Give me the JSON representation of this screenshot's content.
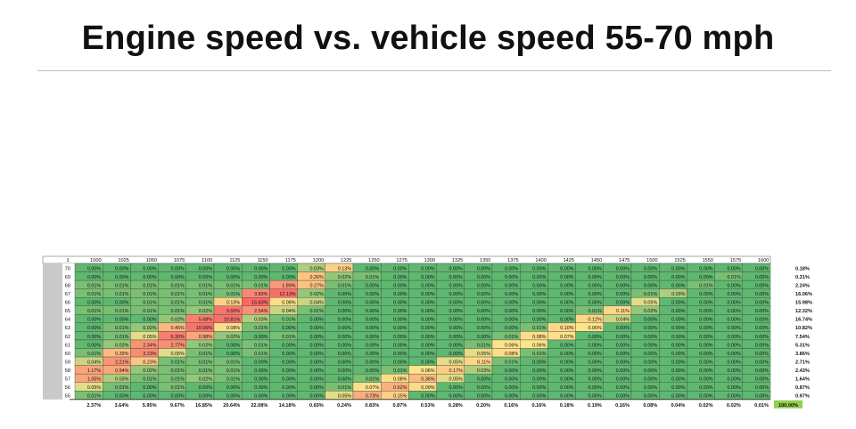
{
  "title": "Engine speed vs. vehicle speed 55-70 mph",
  "chart_data": {
    "type": "heatmap",
    "corner_label": "1",
    "rpm": [
      "1000",
      "1025",
      "1050",
      "1075",
      "1100",
      "1125",
      "1150",
      "1175",
      "1200",
      "1225",
      "1250",
      "1275",
      "1300",
      "1325",
      "1350",
      "1375",
      "1400",
      "1425",
      "1450",
      "1475",
      "1500",
      "1525",
      "1550",
      "1575",
      "1600"
    ],
    "mph": [
      "70",
      "69",
      "68",
      "67",
      "66",
      "65",
      "64",
      "63",
      "62",
      "61",
      "60",
      "59",
      "58",
      "57",
      "56",
      "55"
    ],
    "cells": [
      [
        "0.00%",
        "0.00%",
        "0.00%",
        "0.00%",
        "0.00%",
        "0.00%",
        "0.00%",
        "0.00%",
        "0.03%",
        "0.13%",
        "0.00%",
        "0.00%",
        "0.00%",
        "0.00%",
        "0.00%",
        "0.00%",
        "0.00%",
        "0.00%",
        "0.00%",
        "0.00%",
        "0.00%",
        "0.00%",
        "0.00%",
        "0.00%",
        "0.00%"
      ],
      [
        "0.00%",
        "0.00%",
        "0.00%",
        "0.00%",
        "0.00%",
        "0.00%",
        "0.00%",
        "0.00%",
        "0.26%",
        "0.02%",
        "0.01%",
        "0.00%",
        "0.00%",
        "0.00%",
        "0.00%",
        "0.00%",
        "0.00%",
        "0.00%",
        "0.00%",
        "0.00%",
        "0.00%",
        "0.00%",
        "0.00%",
        "0.01%",
        "0.00%"
      ],
      [
        "0.01%",
        "0.01%",
        "0.01%",
        "0.01%",
        "0.01%",
        "0.01%",
        "0.01%",
        "1.89%",
        "0.27%",
        "0.01%",
        "0.00%",
        "0.00%",
        "0.00%",
        "0.00%",
        "0.00%",
        "0.00%",
        "0.00%",
        "0.00%",
        "0.00%",
        "0.00%",
        "0.00%",
        "0.00%",
        "0.01%",
        "0.00%",
        "0.00%"
      ],
      [
        "0.01%",
        "0.01%",
        "0.01%",
        "0.01%",
        "0.01%",
        "0.01%",
        "3.83%",
        "12.13%",
        "0.02%",
        "0.00%",
        "0.00%",
        "0.00%",
        "0.00%",
        "0.00%",
        "0.00%",
        "0.00%",
        "0.00%",
        "0.00%",
        "0.00%",
        "0.00%",
        "0.01%",
        "0.03%",
        "0.00%",
        "0.00%",
        "0.00%"
      ],
      [
        "0.00%",
        "0.00%",
        "0.01%",
        "0.01%",
        "0.01%",
        "0.13%",
        "15.63%",
        "0.08%",
        "0.04%",
        "0.00%",
        "0.00%",
        "0.00%",
        "0.00%",
        "0.00%",
        "0.00%",
        "0.00%",
        "0.00%",
        "0.00%",
        "0.00%",
        "0.00%",
        "0.05%",
        "0.00%",
        "0.00%",
        "0.00%",
        "0.00%"
      ],
      [
        "0.01%",
        "0.01%",
        "0.01%",
        "0.01%",
        "0.02%",
        "9.55%",
        "2.54%",
        "0.04%",
        "0.01%",
        "0.00%",
        "0.00%",
        "0.00%",
        "0.00%",
        "0.00%",
        "0.00%",
        "0.00%",
        "0.00%",
        "0.00%",
        "0.01%",
        "0.11%",
        "0.02%",
        "0.00%",
        "0.00%",
        "0.00%",
        "0.00%"
      ],
      [
        "0.00%",
        "0.00%",
        "0.00%",
        "0.02%",
        "5.68%",
        "10.81%",
        "0.03%",
        "0.01%",
        "0.00%",
        "0.00%",
        "0.00%",
        "0.00%",
        "0.00%",
        "0.00%",
        "0.00%",
        "0.00%",
        "0.00%",
        "0.00%",
        "0.12%",
        "0.04%",
        "0.00%",
        "0.00%",
        "0.00%",
        "0.00%",
        "0.00%"
      ],
      [
        "0.00%",
        "0.01%",
        "0.02%",
        "0.45%",
        "10.06%",
        "0.08%",
        "0.01%",
        "0.00%",
        "0.00%",
        "0.00%",
        "0.00%",
        "0.00%",
        "0.00%",
        "0.00%",
        "0.00%",
        "0.00%",
        "0.01%",
        "0.10%",
        "0.06%",
        "0.00%",
        "0.00%",
        "0.00%",
        "0.00%",
        "0.00%",
        "0.00%"
      ],
      [
        "0.00%",
        "0.01%",
        "0.05%",
        "6.30%",
        "0.98%",
        "0.02%",
        "0.00%",
        "0.01%",
        "0.00%",
        "0.00%",
        "0.00%",
        "0.00%",
        "0.00%",
        "0.00%",
        "0.00%",
        "0.01%",
        "0.08%",
        "0.07%",
        "0.00%",
        "0.00%",
        "0.00%",
        "0.00%",
        "0.00%",
        "0.00%",
        "0.00%"
      ],
      [
        "0.00%",
        "0.02%",
        "2.34%",
        "2.77%",
        "0.02%",
        "0.00%",
        "0.01%",
        "0.00%",
        "0.00%",
        "0.00%",
        "0.00%",
        "0.00%",
        "0.00%",
        "0.00%",
        "0.01%",
        "0.06%",
        "0.06%",
        "0.00%",
        "0.00%",
        "0.00%",
        "0.00%",
        "0.00%",
        "0.00%",
        "0.00%",
        "0.00%"
      ],
      [
        "0.01%",
        "0.39%",
        "3.23%",
        "0.05%",
        "0.01%",
        "0.00%",
        "0.01%",
        "0.00%",
        "0.00%",
        "0.00%",
        "0.00%",
        "0.00%",
        "0.00%",
        "0.00%",
        "0.05%",
        "0.08%",
        "0.01%",
        "0.00%",
        "0.00%",
        "0.00%",
        "0.00%",
        "0.00%",
        "0.00%",
        "0.00%",
        "0.00%"
      ],
      [
        "0.04%",
        "2.21%",
        "0.23%",
        "0.01%",
        "0.01%",
        "0.01%",
        "0.00%",
        "0.00%",
        "0.00%",
        "0.00%",
        "0.00%",
        "0.00%",
        "0.00%",
        "0.05%",
        "0.11%",
        "0.01%",
        "0.00%",
        "0.00%",
        "0.00%",
        "0.00%",
        "0.00%",
        "0.00%",
        "0.00%",
        "0.00%",
        "0.00%"
      ],
      [
        "1.17%",
        "0.94%",
        "0.02%",
        "0.01%",
        "0.01%",
        "0.01%",
        "0.00%",
        "0.00%",
        "0.00%",
        "0.00%",
        "0.00%",
        "0.01%",
        "0.06%",
        "0.17%",
        "0.03%",
        "0.00%",
        "0.00%",
        "0.00%",
        "0.00%",
        "0.00%",
        "0.00%",
        "0.00%",
        "0.00%",
        "0.00%",
        "0.00%"
      ],
      [
        "1.05%",
        "0.03%",
        "0.01%",
        "0.01%",
        "0.02%",
        "0.01%",
        "0.00%",
        "0.00%",
        "0.00%",
        "0.00%",
        "0.01%",
        "0.08%",
        "0.36%",
        "0.05%",
        "0.00%",
        "0.00%",
        "0.00%",
        "0.00%",
        "0.00%",
        "0.00%",
        "0.00%",
        "0.00%",
        "0.00%",
        "0.00%",
        "0.00%"
      ],
      [
        "0.05%",
        "0.01%",
        "0.00%",
        "0.01%",
        "0.00%",
        "0.00%",
        "0.00%",
        "0.00%",
        "0.00%",
        "0.01%",
        "0.07%",
        "0.62%",
        "0.09%",
        "0.00%",
        "0.00%",
        "0.00%",
        "0.00%",
        "0.00%",
        "0.00%",
        "0.00%",
        "0.00%",
        "0.00%",
        "0.00%",
        "0.00%",
        "0.00%"
      ],
      [
        "0.01%",
        "0.00%",
        "0.00%",
        "0.00%",
        "0.00%",
        "0.00%",
        "0.00%",
        "0.00%",
        "0.00%",
        "0.05%",
        "0.73%",
        "0.15%",
        "0.00%",
        "0.00%",
        "0.00%",
        "0.00%",
        "0.00%",
        "0.00%",
        "0.00%",
        "0.00%",
        "0.00%",
        "0.00%",
        "0.00%",
        "0.00%",
        "0.00%"
      ]
    ],
    "row_totals": [
      "0.18%",
      "0.31%",
      "2.24%",
      "16.06%",
      "15.98%",
      "12.32%",
      "16.74%",
      "10.82%",
      "7.54%",
      "5.31%",
      "3.86%",
      "2.71%",
      "2.43%",
      "1.64%",
      "0.87%",
      "0.97%"
    ],
    "col_totals": [
      "2.37%",
      "3.64%",
      "5.95%",
      "9.67%",
      "16.85%",
      "20.64%",
      "22.08%",
      "14.18%",
      "0.65%",
      "0.24%",
      "0.83%",
      "0.87%",
      "0.53%",
      "0.28%",
      "0.20%",
      "0.16%",
      "0.16%",
      "0.18%",
      "0.19%",
      "0.16%",
      "0.08%",
      "0.04%",
      "0.02%",
      "0.02%",
      "0.01%"
    ],
    "grand_total": "100.00%",
    "colors": {
      "low": "#5fb870",
      "mid": "#fce48a",
      "high": "#f8696b",
      "grand_total_bg": "#92d050",
      "row_header_bg": "#c9c9c9"
    }
  }
}
